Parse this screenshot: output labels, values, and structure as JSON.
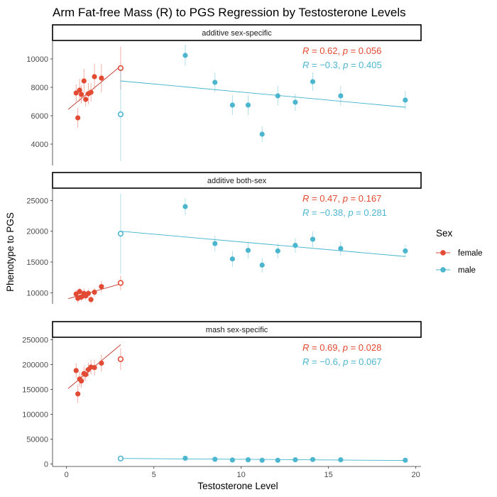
{
  "title": "Arm Fat-free Mass (R) to PGS Regression by Testosterone Levels",
  "colors": {
    "female": "#E24A33",
    "male": "#4DB6CF",
    "female_line": "#C0392B",
    "male_line": "#3FB3CC"
  },
  "chart_data": {
    "type": "scatter",
    "xlabel": "Testosterone Level",
    "ylabel": "Phenotype to PGS",
    "xlim": [
      -0.8,
      20.3
    ],
    "xticks": [
      0,
      5,
      10,
      15,
      20
    ],
    "legend": {
      "title": "Sex",
      "entries": [
        "female",
        "male"
      ],
      "position": "right"
    },
    "panels": [
      {
        "strip": "additive sex-specific",
        "ylim": [
          2500,
          11300
        ],
        "yticks": [
          4000,
          6000,
          8000,
          10000
        ],
        "yticklabels": [
          "4000",
          "6000",
          "8000",
          "10000"
        ],
        "stats": {
          "female": {
            "r": "0.62",
            "p": "0.056"
          },
          "male": {
            "r": "−0.3",
            "p": "0.405"
          }
        },
        "female": {
          "x": [
            0.55,
            0.65,
            0.75,
            0.85,
            1.0,
            1.1,
            1.25,
            1.4,
            1.6,
            2.0
          ],
          "y": [
            7600,
            5850,
            7800,
            7500,
            8450,
            7150,
            7550,
            7650,
            8750,
            8650
          ],
          "err": [
            600,
            700,
            800,
            650,
            850,
            500,
            750,
            650,
            900,
            1000
          ],
          "highlight": {
            "x": 3.1,
            "y": 9350,
            "err": 1500
          },
          "fit": {
            "x": [
              0.1,
              3.1
            ],
            "y": [
              6450,
              9500
            ]
          }
        },
        "male": {
          "x": [
            6.8,
            8.5,
            9.5,
            10.4,
            11.2,
            12.1,
            13.1,
            14.1,
            15.7,
            19.4
          ],
          "y": [
            10250,
            8350,
            6750,
            6750,
            4700,
            7400,
            6950,
            8400,
            7400,
            7100
          ],
          "err": [
            750,
            700,
            700,
            700,
            550,
            700,
            600,
            650,
            700,
            650
          ],
          "highlight": {
            "x": 3.1,
            "y": 6100,
            "err": 3300
          },
          "fit": {
            "x": [
              3.1,
              19.4
            ],
            "y": [
              8450,
              6600
            ]
          }
        }
      },
      {
        "strip": "additive both-sex",
        "ylim": [
          8200,
          27000
        ],
        "yticks": [
          10000,
          15000,
          20000,
          25000
        ],
        "yticklabels": [
          "10000",
          "15000",
          "20000",
          "25000"
        ],
        "stats": {
          "female": {
            "r": "0.47",
            "p": "0.167"
          },
          "male": {
            "r": "−0.38",
            "p": "0.281"
          }
        },
        "female": {
          "x": [
            0.55,
            0.65,
            0.75,
            0.85,
            1.0,
            1.1,
            1.25,
            1.4,
            1.6,
            2.0
          ],
          "y": [
            9800,
            9100,
            10200,
            9300,
            9900,
            9500,
            9900,
            8900,
            10100,
            11000
          ],
          "err": [
            700,
            800,
            600,
            700,
            800,
            600,
            700,
            600,
            700,
            900
          ],
          "highlight": {
            "x": 3.1,
            "y": 11600,
            "err": 1200
          },
          "fit": {
            "x": [
              0.1,
              3.1
            ],
            "y": [
              9050,
              11450
            ]
          }
        },
        "male": {
          "x": [
            6.8,
            8.5,
            9.5,
            10.4,
            11.2,
            12.1,
            13.1,
            14.1,
            15.7,
            19.4
          ],
          "y": [
            24000,
            18000,
            15500,
            16900,
            14500,
            16800,
            17700,
            18700,
            17200,
            16800
          ],
          "err": [
            1400,
            1300,
            1300,
            1300,
            1200,
            1200,
            1200,
            1300,
            1200,
            1000
          ],
          "highlight": {
            "x": 3.1,
            "y": 19600,
            "err": 6500
          },
          "fit": {
            "x": [
              3.1,
              19.4
            ],
            "y": [
              20000,
              15900
            ]
          }
        }
      },
      {
        "strip": "mash sex-specific",
        "ylim": [
          -5000,
          255000
        ],
        "yticks": [
          0,
          50000,
          100000,
          150000,
          200000,
          250000
        ],
        "yticklabels": [
          "0",
          "50000",
          "100000",
          "150000",
          "200000",
          "250000"
        ],
        "stats": {
          "female": {
            "r": "0.69",
            "p": "0.028"
          },
          "male": {
            "r": "−0.6",
            "p": "0.067"
          }
        },
        "female": {
          "x": [
            0.55,
            0.65,
            0.75,
            0.85,
            1.0,
            1.1,
            1.25,
            1.4,
            1.6,
            2.0
          ],
          "y": [
            188000,
            141000,
            171000,
            167000,
            182000,
            180000,
            190000,
            195000,
            194000,
            203000
          ],
          "err": [
            15000,
            18000,
            15000,
            14000,
            15000,
            13000,
            14000,
            15000,
            16000,
            17000
          ],
          "highlight": {
            "x": 3.1,
            "y": 211000,
            "err": 22000
          },
          "fit": {
            "x": [
              0.1,
              3.1
            ],
            "y": [
              152000,
              240000
            ]
          }
        },
        "male": {
          "x": [
            6.8,
            8.5,
            9.5,
            10.4,
            11.2,
            12.1,
            13.1,
            14.1,
            15.7,
            19.4
          ],
          "y": [
            11500,
            9500,
            8000,
            8500,
            7500,
            7500,
            8500,
            9000,
            8500,
            7500
          ],
          "err": [
            1500,
            1500,
            1500,
            1500,
            1500,
            1500,
            1500,
            1500,
            1500,
            1500
          ],
          "highlight": {
            "x": 3.1,
            "y": 11000,
            "err": 3000
          },
          "fit": {
            "x": [
              3.1,
              19.4
            ],
            "y": [
              11200,
              7000
            ]
          }
        }
      }
    ]
  }
}
